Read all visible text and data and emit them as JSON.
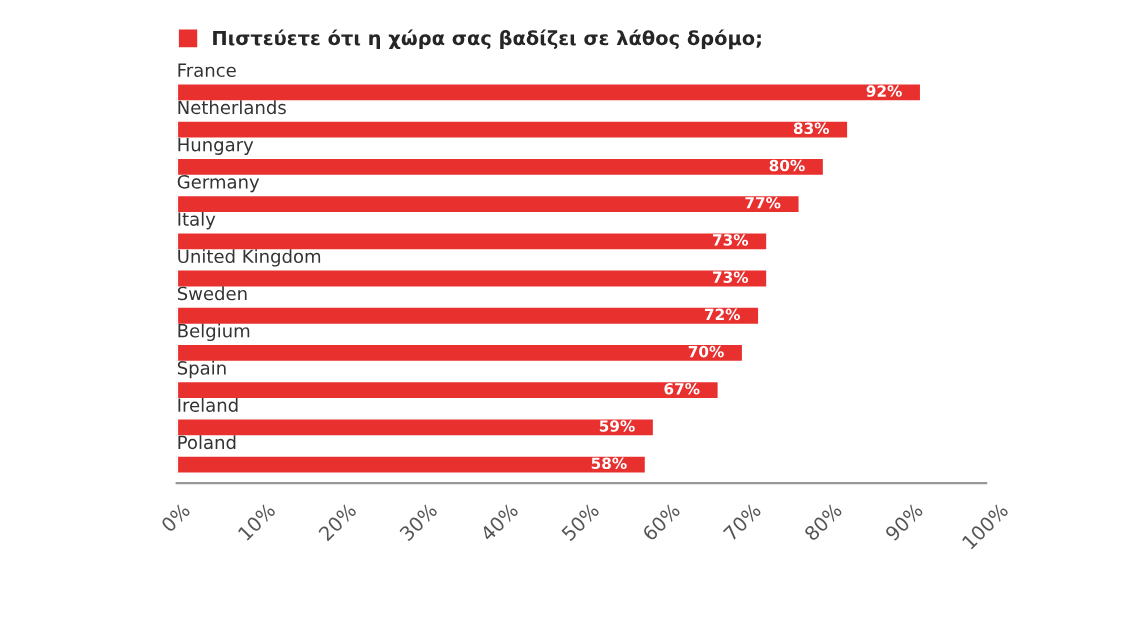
{
  "chart_data": {
    "type": "bar",
    "orientation": "horizontal",
    "categories": [
      "France",
      "Netherlands",
      "Hungary",
      "Germany",
      "Italy",
      "United Kingdom",
      "Sweden",
      "Belgium",
      "Spain",
      "Ireland",
      "Poland"
    ],
    "series": [
      {
        "name": "Πιστεύετε ότι η χώρα σας βαδίζει σε λάθος δρόμο;",
        "color": "#e8302f",
        "values": [
          92,
          83,
          80,
          77,
          73,
          73,
          72,
          70,
          67,
          59,
          58
        ],
        "value_labels": [
          "92%",
          "83%",
          "80%",
          "77%",
          "73%",
          "73%",
          "72%",
          "70%",
          "67%",
          "59%",
          "58%"
        ]
      }
    ],
    "xlim": [
      0,
      100
    ],
    "xticks": [
      {
        "value": 0,
        "label": "0%"
      },
      {
        "value": 10,
        "label": "10%"
      },
      {
        "value": 20,
        "label": "20%"
      },
      {
        "value": 30,
        "label": "30%"
      },
      {
        "value": 40,
        "label": "40%"
      },
      {
        "value": 50,
        "label": "50%"
      },
      {
        "value": 60,
        "label": "60%"
      },
      {
        "value": 70,
        "label": "70%"
      },
      {
        "value": 80,
        "label": "80%"
      },
      {
        "value": 90,
        "label": "90%"
      },
      {
        "value": 100,
        "label": "100%"
      }
    ],
    "grid": false,
    "legend": "top left"
  }
}
